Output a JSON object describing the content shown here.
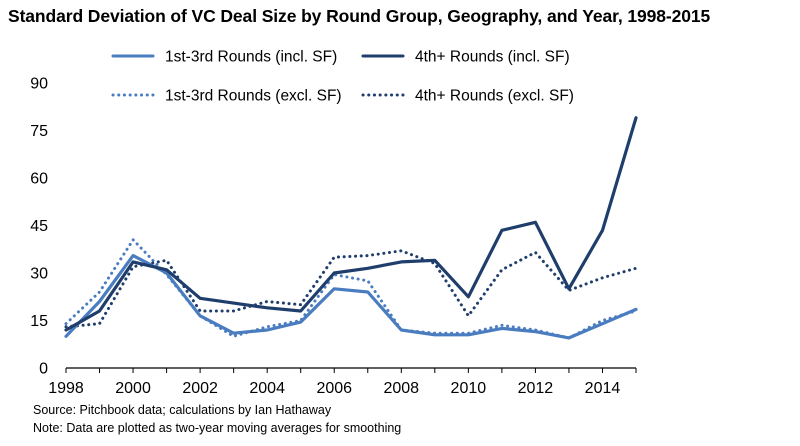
{
  "title": "Standard Deviation of VC Deal Size by Round Group, Geography, and Year, 1998-2015",
  "notes": {
    "source": "Source: Pitchbook data; calculations by Ian Hathaway",
    "note": "Note: Data are plotted as two-year moving averages for smoothing"
  },
  "colors": {
    "light": "#4a7cc0",
    "dark": "#1f3e6c",
    "axis": "#000000"
  },
  "chart_data": {
    "type": "line",
    "x": [
      1998,
      1999,
      2000,
      2001,
      2002,
      2003,
      2004,
      2005,
      2006,
      2007,
      2008,
      2009,
      2010,
      2011,
      2012,
      2013,
      2014,
      2015
    ],
    "xlim": [
      1998,
      2015
    ],
    "ylim": [
      0,
      90
    ],
    "yticks": [
      0,
      15,
      30,
      45,
      60,
      75,
      90
    ],
    "xticks": [
      1998,
      2000,
      2002,
      2004,
      2006,
      2008,
      2010,
      2012,
      2014
    ],
    "legend_position": "top",
    "grid": false,
    "series": [
      {
        "name": "1st-3rd Rounds (incl. SF)",
        "style": "solid",
        "color": "light",
        "values": [
          10,
          21,
          35.5,
          30,
          16.5,
          11,
          12,
          14.5,
          25,
          24,
          12,
          10.5,
          10.5,
          12.5,
          11.5,
          9.5,
          14,
          18.5
        ]
      },
      {
        "name": "4th+ Rounds (incl. SF)",
        "style": "solid",
        "color": "dark",
        "values": [
          12,
          18,
          33.5,
          31,
          22,
          20.5,
          19,
          18,
          30,
          31.5,
          33.5,
          34,
          22.5,
          43.5,
          46,
          25,
          43.5,
          79
        ]
      },
      {
        "name": "1st-3rd Rounds (excl. SF)",
        "style": "dotted",
        "color": "light",
        "values": [
          14,
          24,
          40.5,
          29.5,
          16.5,
          10,
          13,
          15,
          29.5,
          27.5,
          12,
          11,
          11,
          13.5,
          12,
          9.5,
          15,
          18
        ]
      },
      {
        "name": "4th+ Rounds (excl. SF)",
        "style": "dotted",
        "color": "dark",
        "values": [
          13,
          14,
          32,
          34,
          18,
          18,
          21,
          20,
          35,
          35.5,
          37,
          33,
          16.5,
          31,
          36.5,
          24.5,
          28.5,
          31.5
        ]
      }
    ]
  }
}
